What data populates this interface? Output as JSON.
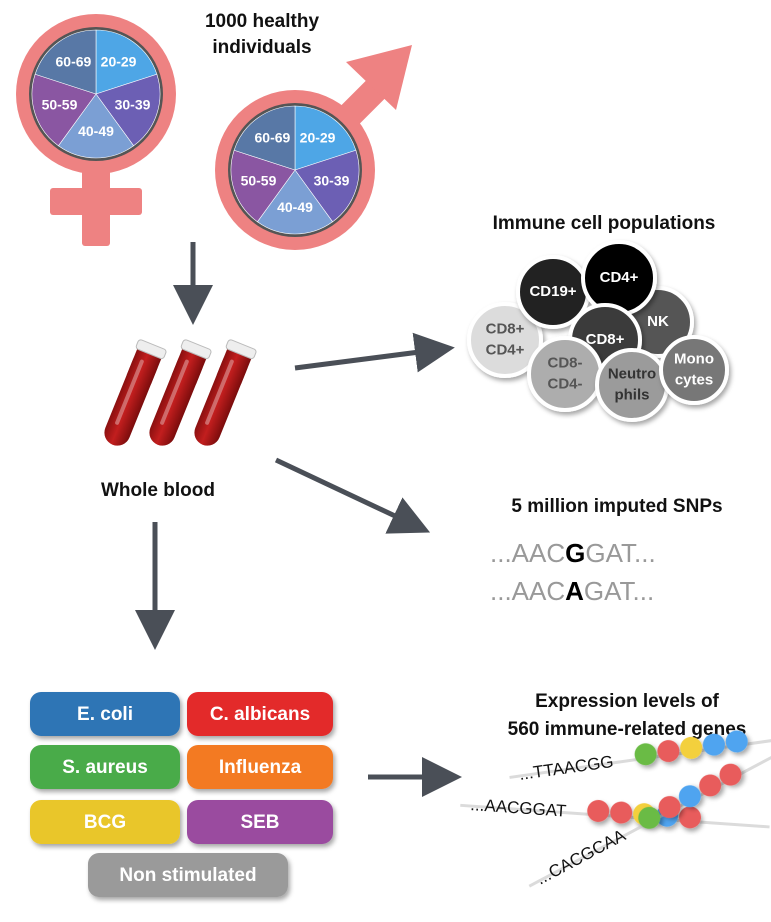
{
  "title_individuals": [
    "1000 healthy",
    "individuals"
  ],
  "age_groups": [
    "20-29",
    "30-39",
    "40-49",
    "50-59",
    "60-69"
  ],
  "age_colors": [
    "#4ea6e6",
    "#6c5fb4",
    "#7b9fd4",
    "#8a56a2",
    "#5878a6"
  ],
  "symbol_color": "#ee8282",
  "whole_blood_label": "Whole blood",
  "immune_title": "Immune cell populations",
  "cells": [
    {
      "lines": [
        "CD8+",
        "CD4+"
      ],
      "fill": "#dcdcdc",
      "text": "#555"
    },
    {
      "lines": [
        "CD19+"
      ],
      "fill": "#222222",
      "text": "#fff"
    },
    {
      "lines": [
        "NK"
      ],
      "fill": "#555555",
      "text": "#fff"
    },
    {
      "lines": [
        "CD4+"
      ],
      "fill": "#000000",
      "text": "#fff"
    },
    {
      "lines": [
        "CD8+"
      ],
      "fill": "#3a3a3a",
      "text": "#fff"
    },
    {
      "lines": [
        "CD8-",
        "CD4-"
      ],
      "fill": "#adadad",
      "text": "#555"
    },
    {
      "lines": [
        "Neutro",
        "phils"
      ],
      "fill": "#9b9b9b",
      "text": "#333"
    },
    {
      "lines": [
        "Mono",
        "cytes"
      ],
      "fill": "#777777",
      "text": "#fff"
    }
  ],
  "snp_title": "5 million imputed SNPs",
  "snp_sequences": [
    {
      "prefix": "...AAC",
      "allele": "G",
      "suffix": "GAT..."
    },
    {
      "prefix": "...AAC",
      "allele": "A",
      "suffix": "GAT..."
    }
  ],
  "stimuli": [
    {
      "label": "E. coli",
      "color": "#2f74b5"
    },
    {
      "label": "C. albicans",
      "color": "#e32b2b"
    },
    {
      "label": "S. aureus",
      "color": "#4aab48"
    },
    {
      "label": "Influenza",
      "color": "#f37a22"
    },
    {
      "label": "BCG",
      "color": "#e9c62c"
    },
    {
      "label": "SEB",
      "color": "#9a4c9f"
    },
    {
      "label": "Non stimulated",
      "color": "#9a9a9a"
    }
  ],
  "expression_title": [
    "Expression levels of",
    "560 immune-related genes"
  ],
  "genes": [
    {
      "seq": "...TTAACGG",
      "dots": [
        "#6bbb45",
        "#e85c5c",
        "#f3d03c",
        "#4fa4f0",
        "#4fa4f0"
      ]
    },
    {
      "seq": "...AACGGAT",
      "dots": [
        "#e85c5c",
        "#e85c5c",
        "#f3d03c",
        "#4fa4f0",
        "#e85c5c"
      ]
    },
    {
      "seq": "...CACGCAA",
      "dots": [
        "#6bbb45",
        "#e85c5c",
        "#4fa4f0",
        "#e85c5c",
        "#e85c5c"
      ]
    }
  ],
  "arrow_color": "#4a4f57"
}
